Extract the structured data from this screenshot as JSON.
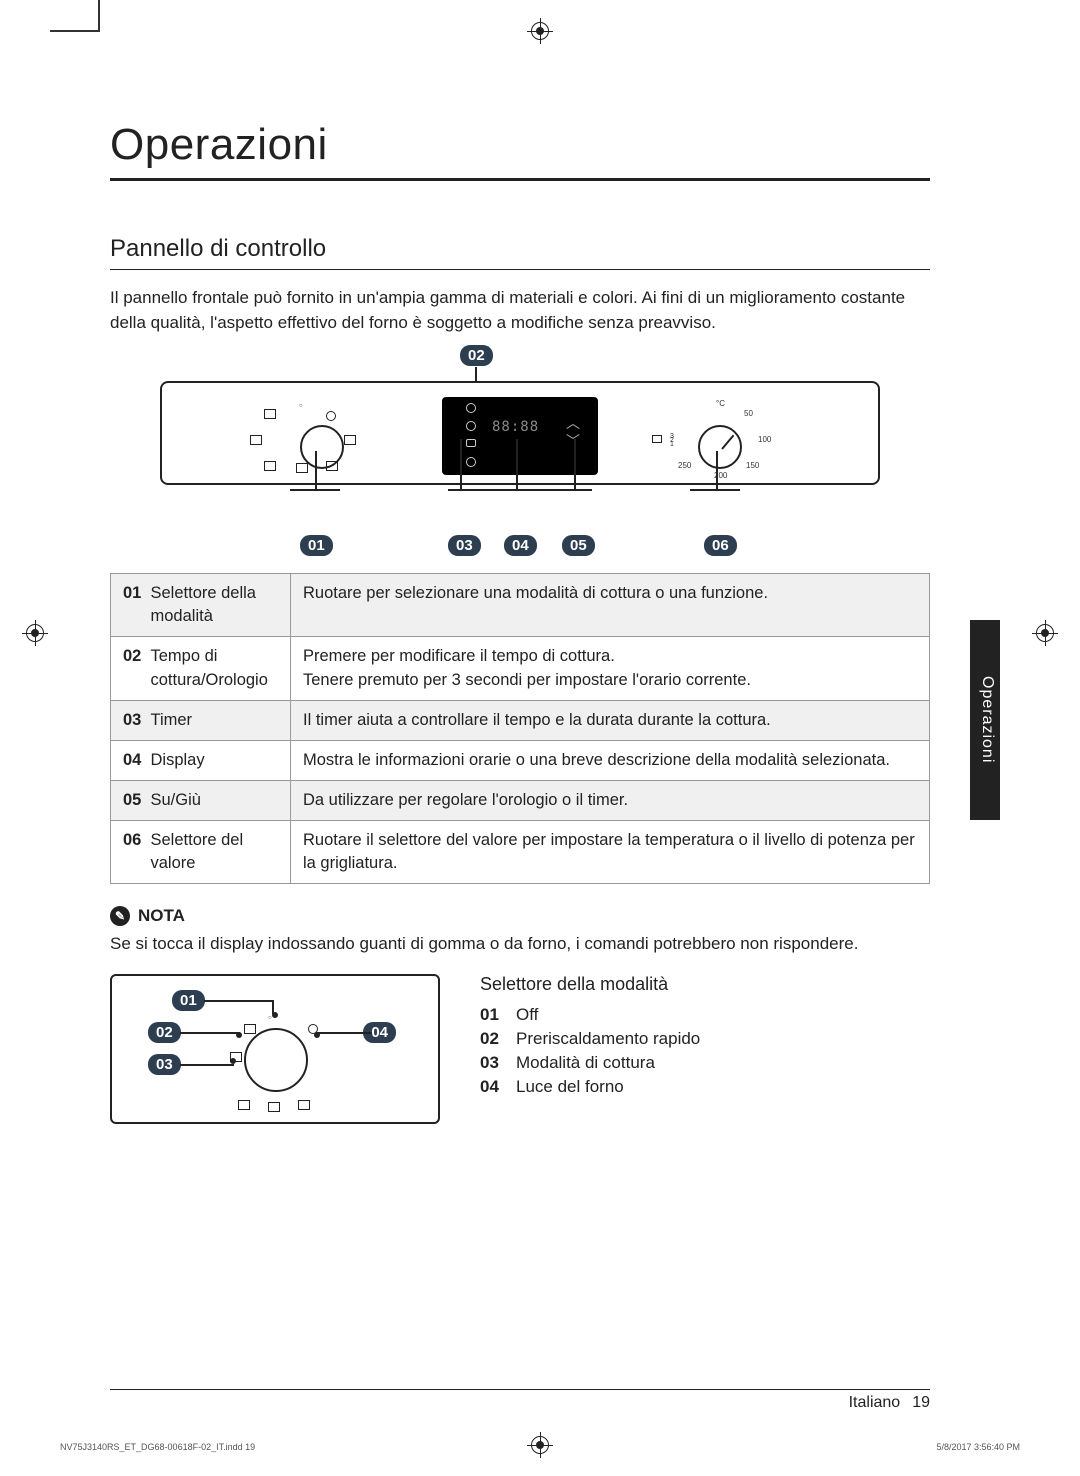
{
  "title": "Operazioni",
  "subtitle": "Pannello di controllo",
  "intro": "Il pannello frontale può fornito in un'ampia gamma di materiali e colori. Ai fini di un miglioramento costante della qualità, l'aspetto effettivo del forno è soggetto a modifiche senza preavviso.",
  "diagram": {
    "top_label": "02",
    "bottom_labels": {
      "l01": "01",
      "l03": "03",
      "l04": "04",
      "l05": "05",
      "l06": "06"
    },
    "display_text": "88:88",
    "temp_marks": {
      "c": "°C",
      "t50": "50",
      "t100": "100",
      "t150": "150",
      "t200": "200",
      "t250": "250"
    }
  },
  "table": {
    "rows": [
      {
        "num": "01",
        "label": "Selettore della modalità",
        "desc": "Ruotare per selezionare una modalità di cottura o una funzione.",
        "shade": true
      },
      {
        "num": "02",
        "label": "Tempo di cottura/Orologio",
        "desc": "Premere per modificare il tempo di cottura.\nTenere premuto per 3 secondi per impostare l'orario corrente.",
        "shade": false
      },
      {
        "num": "03",
        "label": "Timer",
        "desc": "Il timer aiuta a controllare il tempo e la durata durante la cottura.",
        "shade": true
      },
      {
        "num": "04",
        "label": "Display",
        "desc": "Mostra le informazioni orarie o una breve descrizione della modalità selezionata.",
        "shade": false
      },
      {
        "num": "05",
        "label": "Su/Giù",
        "desc": "Da utilizzare per regolare l'orologio o il timer.",
        "shade": true
      },
      {
        "num": "06",
        "label": "Selettore del valore",
        "desc": "Ruotare il selettore del valore per impostare la temperatura o il livello di potenza per la grigliatura.",
        "shade": false
      }
    ]
  },
  "note": {
    "label": "NOTA",
    "body": "Se si tocca il display indossando guanti di gomma o da forno, i comandi potrebbero non rispondere."
  },
  "mode": {
    "title": "Selettore della modalità",
    "labels": {
      "l01": "01",
      "l02": "02",
      "l03": "03",
      "l04": "04"
    },
    "items": [
      {
        "num": "01",
        "text": "Off"
      },
      {
        "num": "02",
        "text": "Preriscaldamento rapido"
      },
      {
        "num": "03",
        "text": "Modalità di cottura"
      },
      {
        "num": "04",
        "text": "Luce del forno"
      }
    ]
  },
  "side_tab": "Operazioni",
  "footer": {
    "lang": "Italiano",
    "page": "19"
  },
  "print": {
    "left": "NV75J3140RS_ET_DG68-00618F-02_IT.indd   19",
    "right": "5/8/2017   3:56:40 PM"
  },
  "colors": {
    "badge_bg": "#2d3e50",
    "text": "#222222",
    "shade_bg": "#f0f0f0",
    "border": "#999999"
  }
}
